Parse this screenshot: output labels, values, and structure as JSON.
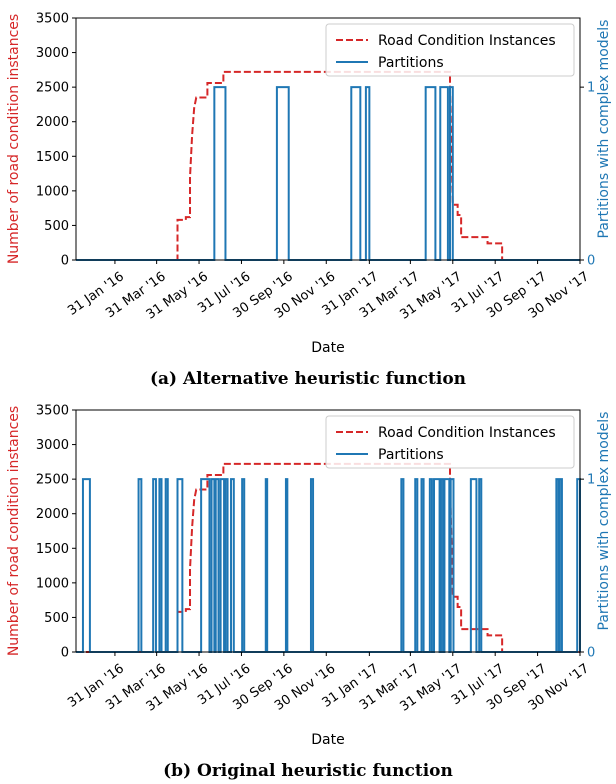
{
  "colors": {
    "road": "#d62728",
    "partitions": "#1f77b4"
  },
  "x_ticks": [
    "31 Jan '16",
    "31 Mar '16",
    "31 May '16",
    "31 Jul '16",
    "30 Sep '16",
    "30 Nov '16",
    "31 Jan '17",
    "31 Mar '17",
    "31 May '17",
    "31 Jul '17",
    "30 Sep '17",
    "30 Nov '17"
  ],
  "chart_data": [
    {
      "type": "line",
      "caption": "(a) Alternative heuristic function",
      "xlabel": "Date",
      "ylabel": "Number of road condition instances",
      "ylabel_right": "Partitions with complex models",
      "ylim": [
        0,
        3500
      ],
      "y_ticks": [
        "0",
        "500",
        "1000",
        "1500",
        "2000",
        "2500",
        "3000",
        "3500"
      ],
      "ylim_right": [
        0,
        1.4
      ],
      "y_ticks_right": [
        "0",
        "1"
      ],
      "xlim": [
        "2015-12-06",
        "2017-11-30"
      ],
      "legend": {
        "position": "top-right",
        "entries": [
          "Road Condition Instances",
          "Partitions"
        ]
      },
      "series": [
        {
          "name": "Road Condition Instances",
          "style": "dashed",
          "points": [
            [
              "2015-12-06",
              0
            ],
            [
              "2016-04-30",
              0
            ],
            [
              "2016-04-30",
              580
            ],
            [
              "2016-05-12",
              580
            ],
            [
              "2016-05-12",
              620
            ],
            [
              "2016-05-18",
              620
            ],
            [
              "2016-05-18",
              1200
            ],
            [
              "2016-05-21",
              1800
            ],
            [
              "2016-05-24",
              2200
            ],
            [
              "2016-05-27",
              2350
            ],
            [
              "2016-06-12",
              2350
            ],
            [
              "2016-06-12",
              2560
            ],
            [
              "2016-07-05",
              2560
            ],
            [
              "2016-07-05",
              2720
            ],
            [
              "2017-05-27",
              2720
            ],
            [
              "2017-05-27",
              2450
            ],
            [
              "2017-05-31",
              800
            ],
            [
              "2017-06-07",
              800
            ],
            [
              "2017-06-07",
              650
            ],
            [
              "2017-06-12",
              650
            ],
            [
              "2017-06-12",
              330
            ],
            [
              "2017-07-20",
              330
            ],
            [
              "2017-07-20",
              240
            ],
            [
              "2017-08-10",
              240
            ],
            [
              "2017-08-10",
              0
            ],
            [
              "2017-11-30",
              0
            ]
          ]
        },
        {
          "name": "Partitions",
          "axis": "right",
          "style": "solid",
          "points": [
            [
              "2015-12-06",
              0
            ],
            [
              "2016-06-22",
              0
            ],
            [
              "2016-06-22",
              1
            ],
            [
              "2016-07-08",
              1
            ],
            [
              "2016-07-08",
              0
            ],
            [
              "2016-09-20",
              0
            ],
            [
              "2016-09-20",
              1
            ],
            [
              "2016-10-07",
              1
            ],
            [
              "2016-10-07",
              0
            ],
            [
              "2017-01-05",
              0
            ],
            [
              "2017-01-05",
              1
            ],
            [
              "2017-01-18",
              1
            ],
            [
              "2017-01-18",
              0
            ],
            [
              "2017-01-26",
              0
            ],
            [
              "2017-01-26",
              1
            ],
            [
              "2017-01-31",
              1
            ],
            [
              "2017-01-31",
              0
            ],
            [
              "2017-04-22",
              0
            ],
            [
              "2017-04-22",
              1
            ],
            [
              "2017-05-06",
              1
            ],
            [
              "2017-05-06",
              0
            ],
            [
              "2017-05-13",
              0
            ],
            [
              "2017-05-13",
              1
            ],
            [
              "2017-05-24",
              1
            ],
            [
              "2017-05-24",
              0
            ],
            [
              "2017-05-27",
              0
            ],
            [
              "2017-05-27",
              1
            ],
            [
              "2017-05-31",
              1
            ],
            [
              "2017-05-31",
              0
            ],
            [
              "2017-11-30",
              0
            ]
          ]
        }
      ]
    },
    {
      "type": "line",
      "caption": "(b) Original heuristic function",
      "xlabel": "Date",
      "ylabel": "Number of road condition instances",
      "ylabel_right": "Partitions with complex models",
      "ylim": [
        0,
        3500
      ],
      "y_ticks": [
        "0",
        "500",
        "1000",
        "1500",
        "2000",
        "2500",
        "3000",
        "3500"
      ],
      "ylim_right": [
        0,
        1.4
      ],
      "y_ticks_right": [
        "0",
        "1"
      ],
      "xlim": [
        "2015-12-06",
        "2017-11-30"
      ],
      "legend": {
        "position": "top-right",
        "entries": [
          "Road Condition Instances",
          "Partitions"
        ]
      },
      "series": [
        {
          "name": "Road Condition Instances",
          "style": "dashed",
          "points": [
            [
              "2015-12-06",
              0
            ],
            [
              "2016-04-30",
              0
            ],
            [
              "2016-04-30",
              580
            ],
            [
              "2016-05-12",
              580
            ],
            [
              "2016-05-12",
              620
            ],
            [
              "2016-05-18",
              620
            ],
            [
              "2016-05-18",
              1200
            ],
            [
              "2016-05-21",
              1800
            ],
            [
              "2016-05-24",
              2200
            ],
            [
              "2016-05-27",
              2350
            ],
            [
              "2016-06-12",
              2350
            ],
            [
              "2016-06-12",
              2560
            ],
            [
              "2016-07-05",
              2560
            ],
            [
              "2016-07-05",
              2720
            ],
            [
              "2017-05-27",
              2720
            ],
            [
              "2017-05-27",
              2450
            ],
            [
              "2017-05-31",
              800
            ],
            [
              "2017-06-07",
              800
            ],
            [
              "2017-06-07",
              650
            ],
            [
              "2017-06-12",
              650
            ],
            [
              "2017-06-12",
              330
            ],
            [
              "2017-07-20",
              330
            ],
            [
              "2017-07-20",
              240
            ],
            [
              "2017-08-10",
              240
            ],
            [
              "2017-08-10",
              0
            ],
            [
              "2017-11-30",
              0
            ]
          ]
        },
        {
          "name": "Partitions",
          "axis": "right",
          "style": "solid",
          "pulses": [
            [
              "2015-12-16",
              "2015-12-26"
            ],
            [
              "2016-03-05",
              "2016-03-09"
            ],
            [
              "2016-03-26",
              "2016-03-30"
            ],
            [
              "2016-04-04",
              "2016-04-07"
            ],
            [
              "2016-04-13",
              "2016-04-16"
            ],
            [
              "2016-04-30",
              "2016-05-07"
            ],
            [
              "2016-06-03",
              "2016-06-15"
            ],
            [
              "2016-06-18",
              "2016-06-22"
            ],
            [
              "2016-06-24",
              "2016-06-28"
            ],
            [
              "2016-07-01",
              "2016-07-06"
            ],
            [
              "2016-07-08",
              "2016-07-11"
            ],
            [
              "2016-07-16",
              "2016-07-20"
            ],
            [
              "2016-08-01",
              "2016-08-04"
            ],
            [
              "2016-09-04",
              "2016-09-06"
            ],
            [
              "2016-10-03",
              "2016-10-05"
            ],
            [
              "2016-11-08",
              "2016-11-11"
            ],
            [
              "2017-03-18",
              "2017-03-21"
            ],
            [
              "2017-04-07",
              "2017-04-10"
            ],
            [
              "2017-04-16",
              "2017-04-19"
            ],
            [
              "2017-04-28",
              "2017-05-01"
            ],
            [
              "2017-05-04",
              "2017-05-12"
            ],
            [
              "2017-05-14",
              "2017-05-17"
            ],
            [
              "2017-05-19",
              "2017-05-26"
            ],
            [
              "2017-05-28",
              "2017-06-01"
            ],
            [
              "2017-06-26",
              "2017-07-04"
            ],
            [
              "2017-07-08",
              "2017-07-11"
            ],
            [
              "2017-10-27",
              "2017-10-30"
            ],
            [
              "2017-11-01",
              "2017-11-04"
            ],
            [
              "2017-11-26",
              "2017-11-30"
            ]
          ]
        }
      ]
    }
  ]
}
